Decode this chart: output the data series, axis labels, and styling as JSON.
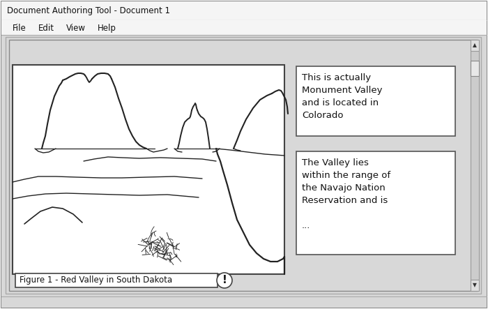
{
  "title_bar_text": "Document Authoring Tool - Document 1",
  "menu_items": [
    "File",
    "Edit",
    "View",
    "Help"
  ],
  "figure_caption": "Figure 1 - Red Valley in South Dakota",
  "annotation_1": "This is actually\nMonument Valley\nand is located in\nColorado",
  "annotation_2": "The Valley lies\nwithin the range of\nthe Navajo Nation\nReservation and is\n\n...",
  "bg_color": "#ffffff",
  "outer_border_color": "#666666",
  "title_bar_bg": "#f5f5f5",
  "menu_bar_bg": "#f5f5f5",
  "content_bg": "#d8d8d8",
  "image_bg": "#ffffff",
  "annotation_box_bg": "#ffffff",
  "text_color": "#111111",
  "line_color": "#222222",
  "scrollbar_bg": "#cccccc",
  "scrollbar_thumb": "#e8e8e8"
}
